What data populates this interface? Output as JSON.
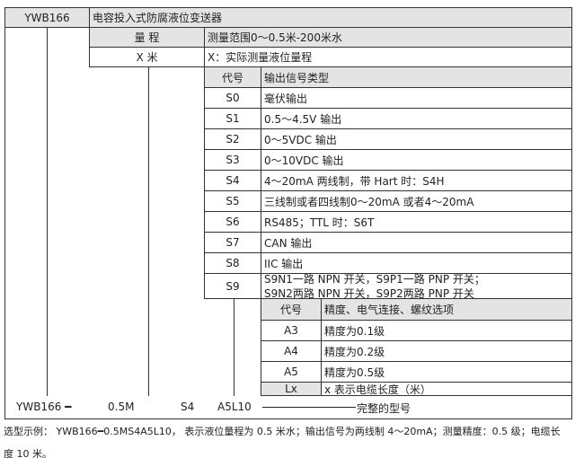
{
  "header": {
    "model": "YWB166",
    "name": "电容投入式防腐液位变送器"
  },
  "range": {
    "label": "量 程",
    "desc": "测量范围0～0.5米-200米水",
    "code": "X 米",
    "code_desc": "X：实际测量液位量程"
  },
  "output": {
    "head_code": "代号",
    "head_desc": "输出信号类型",
    "rows": [
      {
        "code": "S0",
        "desc": "毫伏输出"
      },
      {
        "code": "S1",
        "desc": "0.5～4.5V 输出"
      },
      {
        "code": "S2",
        "desc": "0～5VDC 输出"
      },
      {
        "code": "S3",
        "desc": "0～10VDC 输出"
      },
      {
        "code": "S4",
        "desc": "4～20mA 两线制，带 Hart 时：S4H"
      },
      {
        "code": "S5",
        "desc": "三线制或者四线制0～20mA 或者4～20mA"
      },
      {
        "code": "S6",
        "desc": "RS485；TTL 时：S6T"
      },
      {
        "code": "S7",
        "desc": "CAN 输出"
      },
      {
        "code": "S8",
        "desc": "IIC 输出"
      }
    ],
    "s9": {
      "code": "S9",
      "line1": "S9N1一路 NPN 开关，S9P1一路 PNP 开关；",
      "line2": "S9N2两路 NPN 开关，S9P2两路 PNP 开关"
    }
  },
  "options": {
    "head_code": "代号",
    "head_desc": "精度、电气连接、螺纹选项",
    "rows": [
      {
        "code": "A3",
        "desc": "精度为0.1级"
      },
      {
        "code": "A4",
        "desc": "精度为0.2级"
      },
      {
        "code": "A5",
        "desc": "精度为0.5级"
      },
      {
        "code": "Lx",
        "desc": "x 表示电缆长度（米）"
      }
    ]
  },
  "example_row": {
    "model": "YWB166 ━",
    "range": "0.5M",
    "output": "S4",
    "options": "A5L10",
    "label": "完整的型号"
  },
  "footnote": {
    "line1": "选型示例： YWB166━0.5MS4A5L10， 表示液位量程为 0.5 米水；输出信号为两线制 4～20mA；测量精度：0.5 级；电缆长",
    "line2": "度 10 米。"
  }
}
